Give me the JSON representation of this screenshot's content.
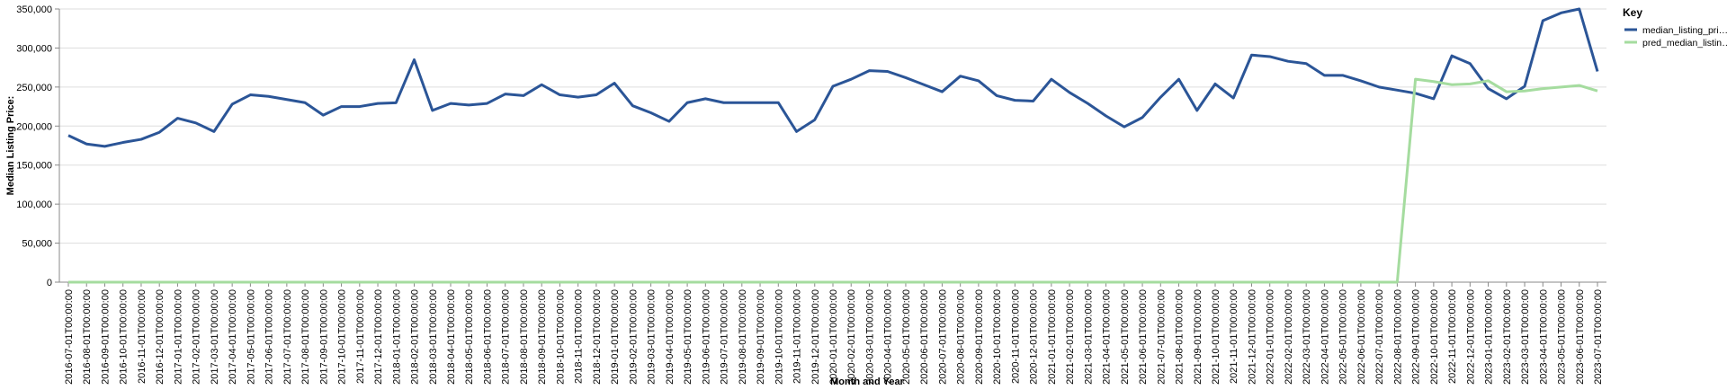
{
  "chart_data": {
    "type": "line",
    "x_label": "Month and Year",
    "y_label": "Median Listing Price:",
    "legend_title": "Key",
    "legend": "top-right",
    "grid": true,
    "categories": [
      "2016-07-01T00:00:00",
      "2016-08-01T00:00:00",
      "2016-09-01T00:00:00",
      "2016-10-01T00:00:00",
      "2016-11-01T00:00:00",
      "2016-12-01T00:00:00",
      "2017-01-01T00:00:00",
      "2017-02-01T00:00:00",
      "2017-03-01T00:00:00",
      "2017-04-01T00:00:00",
      "2017-05-01T00:00:00",
      "2017-06-01T00:00:00",
      "2017-07-01T00:00:00",
      "2017-08-01T00:00:00",
      "2017-09-01T00:00:00",
      "2017-10-01T00:00:00",
      "2017-11-01T00:00:00",
      "2017-12-01T00:00:00",
      "2018-01-01T00:00:00",
      "2018-02-01T00:00:00",
      "2018-03-01T00:00:00",
      "2018-04-01T00:00:00",
      "2018-05-01T00:00:00",
      "2018-06-01T00:00:00",
      "2018-07-01T00:00:00",
      "2018-08-01T00:00:00",
      "2018-09-01T00:00:00",
      "2018-10-01T00:00:00",
      "2018-11-01T00:00:00",
      "2018-12-01T00:00:00",
      "2019-01-01T00:00:00",
      "2019-02-01T00:00:00",
      "2019-03-01T00:00:00",
      "2019-04-01T00:00:00",
      "2019-05-01T00:00:00",
      "2019-06-01T00:00:00",
      "2019-07-01T00:00:00",
      "2019-08-01T00:00:00",
      "2019-09-01T00:00:00",
      "2019-10-01T00:00:00",
      "2019-11-01T00:00:00",
      "2019-12-01T00:00:00",
      "2020-01-01T00:00:00",
      "2020-02-01T00:00:00",
      "2020-03-01T00:00:00",
      "2020-04-01T00:00:00",
      "2020-05-01T00:00:00",
      "2020-06-01T00:00:00",
      "2020-07-01T00:00:00",
      "2020-08-01T00:00:00",
      "2020-09-01T00:00:00",
      "2020-10-01T00:00:00",
      "2020-11-01T00:00:00",
      "2020-12-01T00:00:00",
      "2021-01-01T00:00:00",
      "2021-02-01T00:00:00",
      "2021-03-01T00:00:00",
      "2021-04-01T00:00:00",
      "2021-05-01T00:00:00",
      "2021-06-01T00:00:00",
      "2021-07-01T00:00:00",
      "2021-08-01T00:00:00",
      "2021-09-01T00:00:00",
      "2021-10-01T00:00:00",
      "2021-11-01T00:00:00",
      "2021-12-01T00:00:00",
      "2022-01-01T00:00:00",
      "2022-02-01T00:00:00",
      "2022-03-01T00:00:00",
      "2022-04-01T00:00:00",
      "2022-05-01T00:00:00",
      "2022-06-01T00:00:00",
      "2022-07-01T00:00:00",
      "2022-08-01T00:00:00",
      "2022-09-01T00:00:00",
      "2022-10-01T00:00:00",
      "2022-11-01T00:00:00",
      "2022-12-01T00:00:00",
      "2023-01-01T00:00:00",
      "2023-02-01T00:00:00",
      "2023-03-01T00:00:00",
      "2023-04-01T00:00:00",
      "2023-05-01T00:00:00",
      "2023-06-01T00:00:00",
      "2023-07-01T00:00:00"
    ],
    "series": [
      {
        "name": "median_listing_pri…",
        "color": "#2b5597",
        "values": [
          188000,
          177000,
          174000,
          179000,
          183000,
          192000,
          210000,
          204000,
          193000,
          228000,
          240000,
          238000,
          234000,
          230000,
          214000,
          225000,
          225000,
          229000,
          229900,
          285000,
          220000,
          229000,
          227000,
          229000,
          241000,
          239000,
          253000,
          240000,
          237000,
          240000,
          255000,
          226000,
          217000,
          206000,
          230000,
          235000,
          230000,
          230000,
          230000,
          230000,
          193000,
          208000,
          251000,
          260000,
          271000,
          270000,
          262000,
          253000,
          244000,
          264000,
          258000,
          239000,
          233000,
          232000,
          260000,
          243000,
          229000,
          213000,
          199000,
          211000,
          237000,
          260000,
          220000,
          254000,
          236000,
          291000,
          289000,
          283000,
          280000,
          265000,
          265000,
          258000,
          250000,
          246000,
          242000,
          235000,
          290000,
          280000,
          248000,
          235000,
          251000,
          335000,
          345000,
          350000,
          270000
        ]
      },
      {
        "name": "pred_median_listin…",
        "color": "#a5dc9f",
        "values": [
          0,
          0,
          0,
          0,
          0,
          0,
          0,
          0,
          0,
          0,
          0,
          0,
          0,
          0,
          0,
          0,
          0,
          0,
          0,
          0,
          0,
          0,
          0,
          0,
          0,
          0,
          0,
          0,
          0,
          0,
          0,
          0,
          0,
          0,
          0,
          0,
          0,
          0,
          0,
          0,
          0,
          0,
          0,
          0,
          0,
          0,
          0,
          0,
          0,
          0,
          0,
          0,
          0,
          0,
          0,
          0,
          0,
          0,
          0,
          0,
          0,
          0,
          0,
          0,
          0,
          0,
          0,
          0,
          0,
          0,
          0,
          0,
          0,
          0,
          260000,
          257000,
          253000,
          254000,
          258000,
          244000,
          245000,
          248000,
          250000,
          252000,
          245000
        ]
      }
    ],
    "ylim": [
      0,
      350000
    ],
    "yticks": [
      0,
      {
        "value": 50000,
        "label": "50,000"
      },
      {
        "value": 100000,
        "label": "100,000"
      },
      {
        "value": 150000,
        "label": "150,000"
      },
      {
        "value": 200000,
        "label": "200,000"
      },
      {
        "value": 250000,
        "label": "250,000"
      },
      {
        "value": 300000,
        "label": "300,000"
      },
      {
        "value": 350000,
        "label": "350,000"
      }
    ]
  }
}
